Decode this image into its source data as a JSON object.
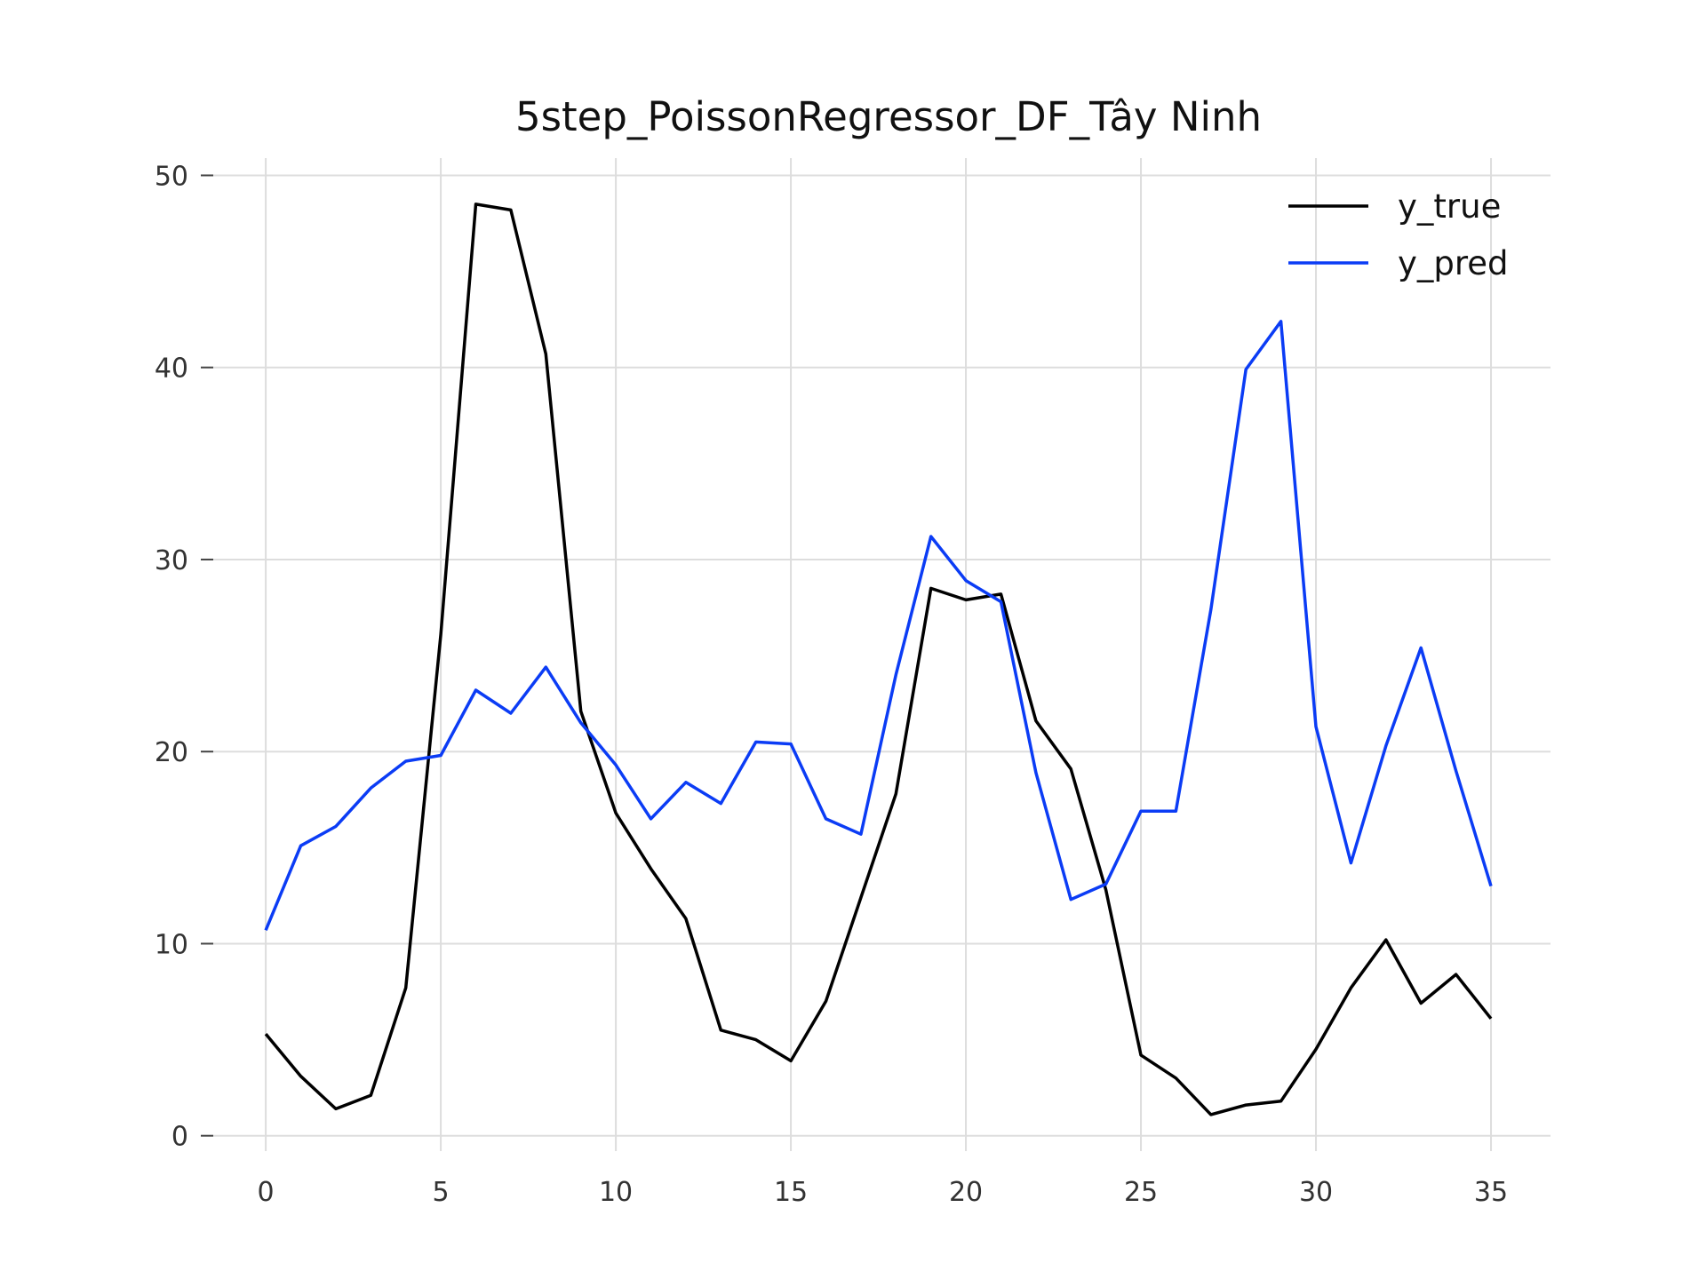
{
  "chart_data": {
    "type": "line",
    "title": "5step_PoissonRegressor_DF_Tây Ninh",
    "xlabel": "",
    "ylabel": "",
    "xlim": [
      -1.5,
      36.7
    ],
    "ylim": [
      -0.8,
      50.9
    ],
    "xticks": [
      0,
      5,
      10,
      15,
      20,
      25,
      30,
      35
    ],
    "yticks": [
      0,
      10,
      20,
      30,
      40,
      50
    ],
    "grid": true,
    "legend_position": "top-right",
    "x": [
      0,
      1,
      2,
      3,
      4,
      5,
      6,
      7,
      8,
      9,
      10,
      11,
      12,
      13,
      14,
      15,
      16,
      17,
      18,
      19,
      20,
      21,
      22,
      23,
      24,
      25,
      26,
      27,
      28,
      29,
      30,
      31,
      32,
      33,
      34,
      35
    ],
    "series": [
      {
        "name": "y_true",
        "color": "#000000",
        "values": [
          5.3,
          3.1,
          1.4,
          2.1,
          7.7,
          26.1,
          48.5,
          48.2,
          40.7,
          22.1,
          16.8,
          13.9,
          11.3,
          5.5,
          5.0,
          3.9,
          7.0,
          12.4,
          17.8,
          28.5,
          27.9,
          28.2,
          21.6,
          19.1,
          12.8,
          4.2,
          3.0,
          1.1,
          1.6,
          1.8,
          4.5,
          7.7,
          10.2,
          6.9,
          8.4,
          6.1
        ]
      },
      {
        "name": "y_pred",
        "color": "#0b3cf5",
        "values": [
          10.7,
          15.1,
          16.1,
          18.1,
          19.5,
          19.8,
          23.2,
          22.0,
          24.4,
          21.5,
          19.3,
          16.5,
          18.4,
          17.3,
          20.5,
          20.4,
          16.5,
          15.7,
          24.0,
          31.2,
          28.9,
          27.8,
          18.9,
          12.3,
          13.1,
          16.9,
          16.9,
          27.4,
          39.9,
          42.4,
          21.3,
          14.2,
          20.3,
          25.4,
          19.0,
          13.0
        ]
      }
    ]
  }
}
